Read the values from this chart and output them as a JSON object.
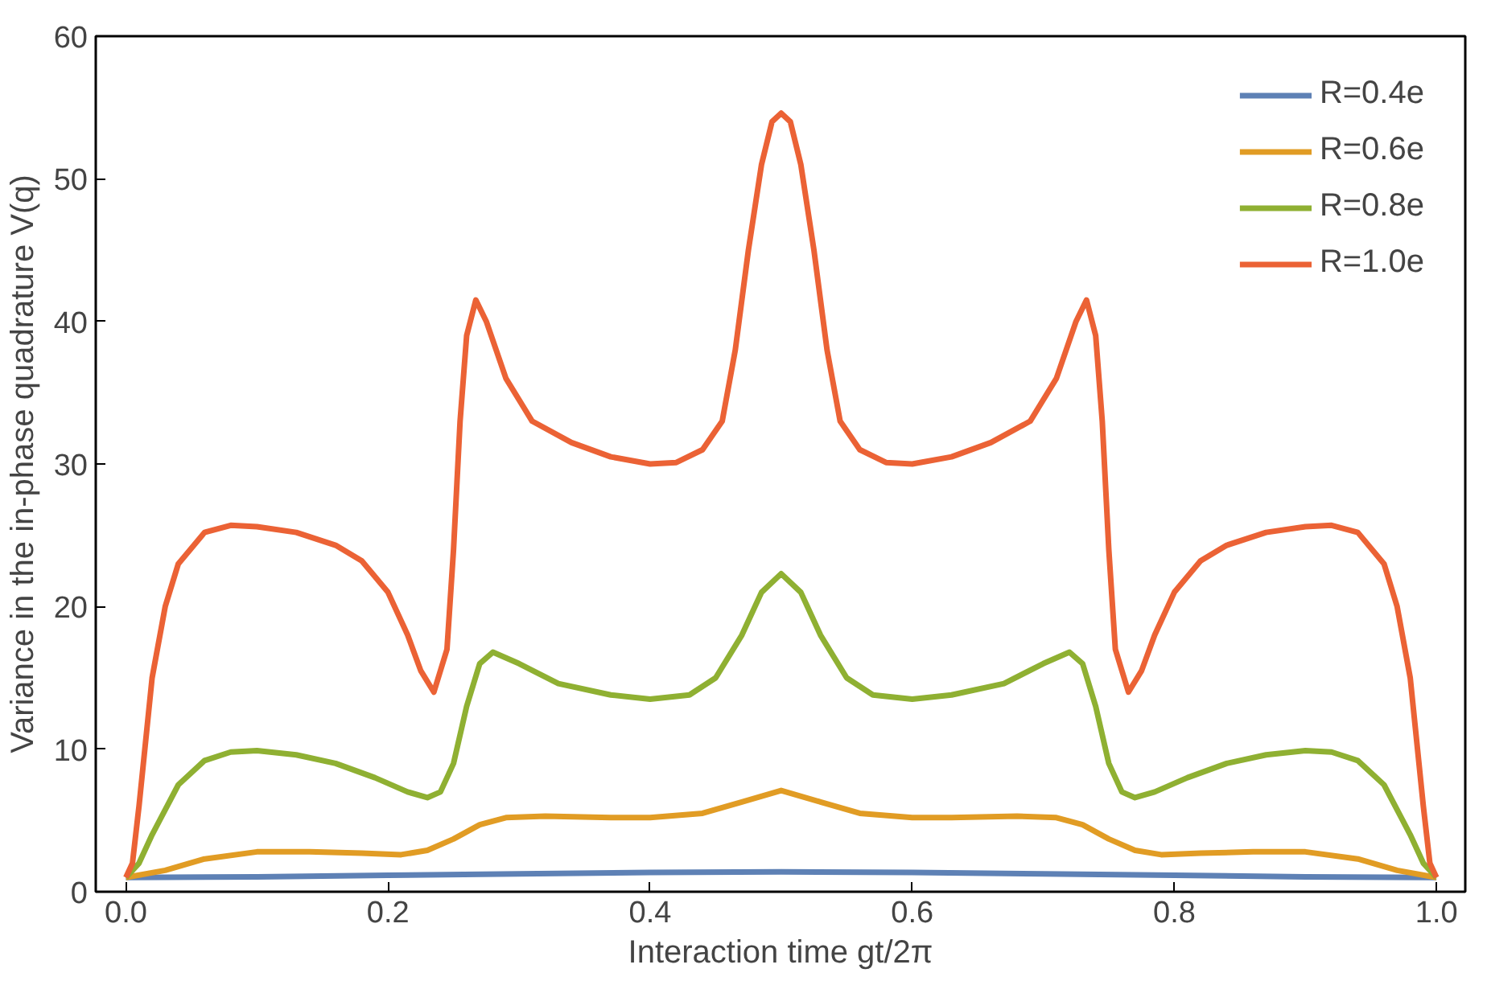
{
  "chart_data": {
    "type": "line",
    "xlabel": "Interaction time gt/2π",
    "ylabel": "Variance in the in-phase quadrature V(q)",
    "xlim": [
      -0.023,
      1.022
    ],
    "ylim": [
      0,
      60
    ],
    "xticks": [
      {
        "value": 0,
        "label": "0.0"
      },
      0.2,
      0.4,
      0.6,
      0.8,
      {
        "value": 1,
        "label": "1.0"
      }
    ],
    "yticks": [
      0,
      10,
      20,
      30,
      40,
      50,
      60
    ],
    "grid": false,
    "legend": "top right",
    "marker": "none",
    "line_style": "solid",
    "series": [
      {
        "name": "R=0.4e",
        "color": "#5e81b5",
        "x": [
          0,
          0.1,
          0.2,
          0.3,
          0.4,
          0.5,
          0.6,
          0.7,
          0.8,
          0.9,
          1.0
        ],
        "values": [
          1,
          1.05,
          1.15,
          1.25,
          1.35,
          1.4,
          1.35,
          1.25,
          1.15,
          1.05,
          1
        ]
      },
      {
        "name": "R=0.6e",
        "color": "#e19c24",
        "x": [
          0,
          0.03,
          0.06,
          0.1,
          0.14,
          0.18,
          0.21,
          0.23,
          0.25,
          0.27,
          0.29,
          0.32,
          0.37,
          0.4,
          0.44,
          0.47,
          0.5,
          0.53,
          0.56,
          0.6,
          0.63,
          0.68,
          0.71,
          0.73,
          0.75,
          0.77,
          0.79,
          0.82,
          0.86,
          0.9,
          0.94,
          0.97,
          1.0
        ],
        "values": [
          1,
          1.5,
          2.3,
          2.8,
          2.8,
          2.7,
          2.6,
          2.9,
          3.7,
          4.7,
          5.2,
          5.3,
          5.2,
          5.2,
          5.5,
          6.3,
          7.1,
          6.3,
          5.5,
          5.2,
          5.2,
          5.3,
          5.2,
          4.7,
          3.7,
          2.9,
          2.6,
          2.7,
          2.8,
          2.8,
          2.3,
          1.5,
          1
        ]
      },
      {
        "name": "R=0.8e",
        "color": "#8fb032",
        "x": [
          0,
          0.01,
          0.02,
          0.04,
          0.06,
          0.08,
          0.1,
          0.13,
          0.16,
          0.19,
          0.215,
          0.23,
          0.24,
          0.25,
          0.26,
          0.27,
          0.28,
          0.3,
          0.33,
          0.37,
          0.4,
          0.43,
          0.45,
          0.47,
          0.485,
          0.5,
          0.515,
          0.53,
          0.55,
          0.57,
          0.6,
          0.63,
          0.67,
          0.7,
          0.72,
          0.73,
          0.74,
          0.75,
          0.76,
          0.77,
          0.785,
          0.81,
          0.84,
          0.87,
          0.9,
          0.92,
          0.94,
          0.96,
          0.98,
          0.99,
          1.0
        ],
        "values": [
          1,
          2,
          4,
          7.5,
          9.2,
          9.8,
          9.9,
          9.6,
          9,
          8,
          7,
          6.6,
          7,
          9,
          13,
          16,
          16.8,
          16,
          14.6,
          13.8,
          13.5,
          13.8,
          15,
          18,
          21,
          22.3,
          21,
          18,
          15,
          13.8,
          13.5,
          13.8,
          14.6,
          16,
          16.8,
          16,
          13,
          9,
          7,
          6.6,
          7,
          8,
          9,
          9.6,
          9.9,
          9.8,
          9.2,
          7.5,
          4,
          2,
          1
        ]
      },
      {
        "name": "R=1.0e",
        "color": "#eb6235",
        "x": [
          0,
          0.005,
          0.01,
          0.02,
          0.03,
          0.04,
          0.06,
          0.08,
          0.1,
          0.13,
          0.16,
          0.18,
          0.2,
          0.215,
          0.225,
          0.235,
          0.245,
          0.25,
          0.255,
          0.26,
          0.267,
          0.275,
          0.29,
          0.31,
          0.34,
          0.37,
          0.4,
          0.42,
          0.44,
          0.455,
          0.465,
          0.475,
          0.485,
          0.493,
          0.5,
          0.507,
          0.515,
          0.525,
          0.535,
          0.545,
          0.56,
          0.58,
          0.6,
          0.63,
          0.66,
          0.69,
          0.71,
          0.725,
          0.733,
          0.74,
          0.745,
          0.75,
          0.755,
          0.765,
          0.775,
          0.785,
          0.8,
          0.82,
          0.84,
          0.87,
          0.9,
          0.92,
          0.94,
          0.96,
          0.97,
          0.98,
          0.99,
          0.995,
          1.0
        ],
        "values": [
          1,
          2,
          6,
          15,
          20,
          23,
          25.2,
          25.7,
          25.6,
          25.2,
          24.3,
          23.2,
          21,
          18,
          15.5,
          14,
          17,
          24,
          33,
          39,
          41.5,
          40,
          36,
          33,
          31.5,
          30.5,
          30,
          30.1,
          31,
          33,
          38,
          45,
          51,
          54,
          54.6,
          54,
          51,
          45,
          38,
          33,
          31,
          30.1,
          30,
          30.5,
          31.5,
          33,
          36,
          40,
          41.5,
          39,
          33,
          24,
          17,
          14,
          15.5,
          18,
          21,
          23.2,
          24.3,
          25.2,
          25.6,
          25.7,
          25.2,
          23,
          20,
          15,
          6,
          2,
          1
        ]
      }
    ]
  }
}
